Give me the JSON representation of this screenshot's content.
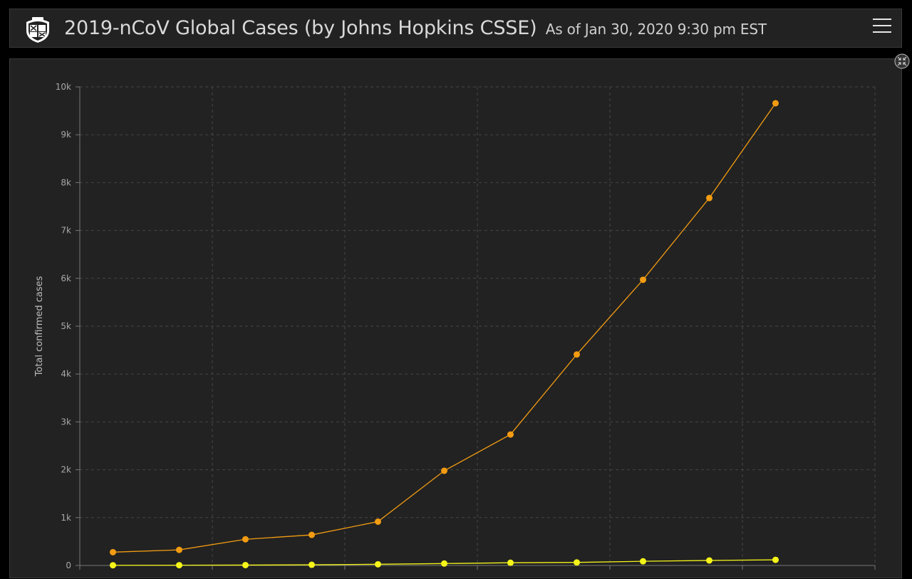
{
  "header": {
    "title": "2019-nCoV Global Cases (by Johns Hopkins CSSE)",
    "subtitle": "As of Jan 30, 2020 9:30 pm EST",
    "logo_icon": "university-shield-icon",
    "menu_icon": "hamburger-menu-icon"
  },
  "panel": {
    "restore_icon": "collapse-arrows-icon"
  },
  "colors": {
    "background": "#000000",
    "panel": "#222222",
    "grid": "#444444",
    "series_1": "#F39C12",
    "series_2": "#F5F51A",
    "text": "#d9d9d9"
  },
  "chart_data": {
    "type": "line",
    "title": "",
    "xlabel": "",
    "ylabel": "Total confirmed cases",
    "ylim": [
      0,
      10000
    ],
    "yticks": [
      "0",
      "1k",
      "2k",
      "3k",
      "4k",
      "5k",
      "6k",
      "7k",
      "8k",
      "9k",
      "10k"
    ],
    "grid": true,
    "x": [
      1,
      2,
      3,
      4,
      5,
      6,
      7,
      8,
      9,
      10,
      11
    ],
    "series": [
      {
        "color": "#F39C12",
        "values": [
          278,
          326,
          547,
          639,
          916,
          1979,
          2737,
          4409,
          5970,
          7678,
          9658
        ]
      },
      {
        "color": "#F5F51A",
        "values": [
          4,
          6,
          8,
          14,
          25,
          40,
          57,
          64,
          87,
          105,
          118
        ]
      }
    ]
  }
}
